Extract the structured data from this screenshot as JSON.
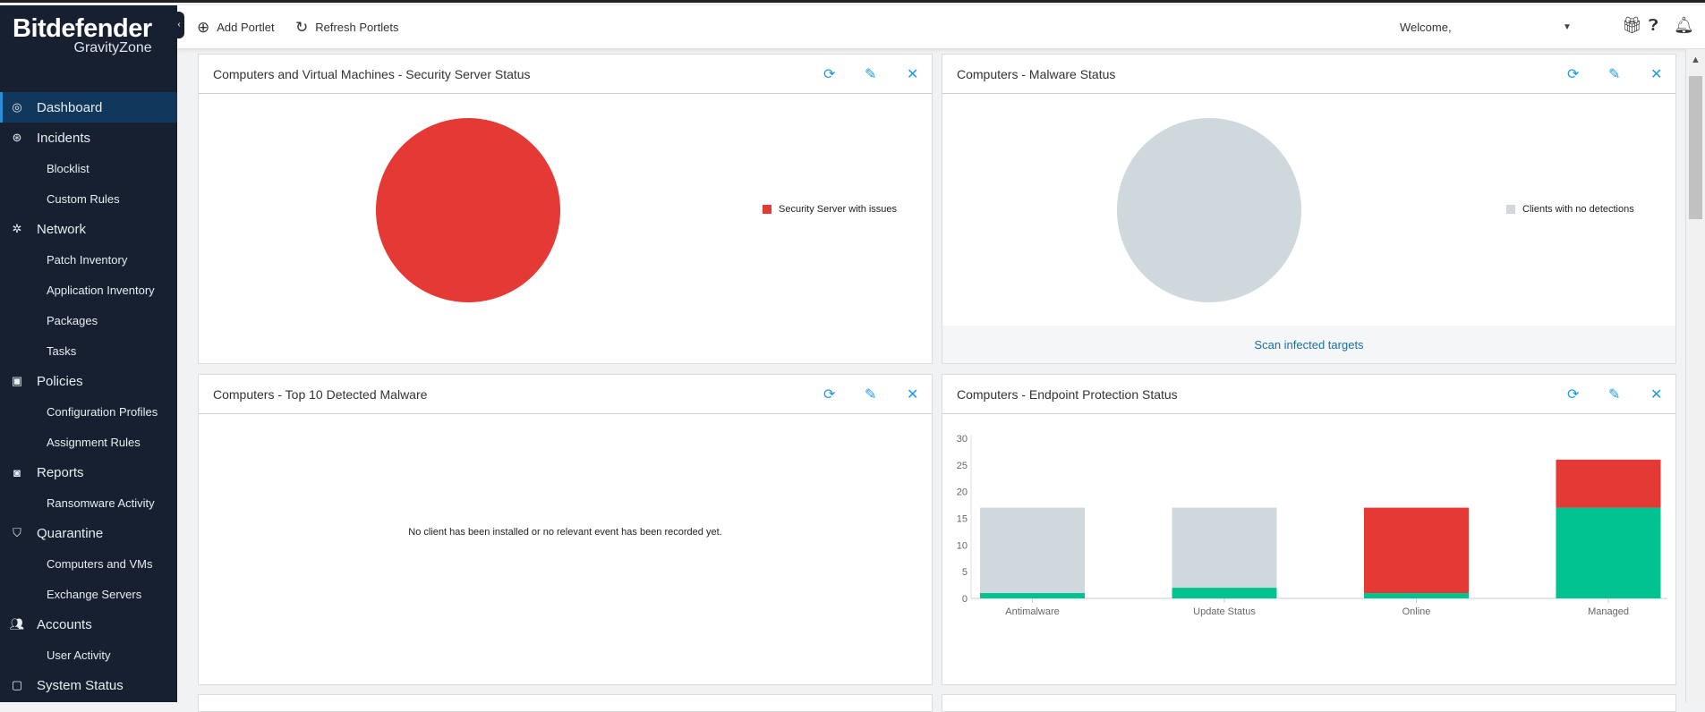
{
  "brand": {
    "name": "Bitdefender",
    "product": "GravityZone"
  },
  "sidebar": {
    "items": [
      {
        "label": "Dashboard",
        "icon": "dashboard-icon",
        "level": "top",
        "active": true
      },
      {
        "label": "Incidents",
        "icon": "incidents-icon",
        "level": "top"
      },
      {
        "label": "Blocklist",
        "level": "sub"
      },
      {
        "label": "Custom Rules",
        "level": "sub"
      },
      {
        "label": "Network",
        "icon": "network-icon",
        "level": "top"
      },
      {
        "label": "Patch Inventory",
        "level": "sub"
      },
      {
        "label": "Application Inventory",
        "level": "sub"
      },
      {
        "label": "Packages",
        "level": "sub"
      },
      {
        "label": "Tasks",
        "level": "sub"
      },
      {
        "label": "Policies",
        "icon": "policies-icon",
        "level": "top"
      },
      {
        "label": "Configuration Profiles",
        "level": "sub"
      },
      {
        "label": "Assignment Rules",
        "level": "sub"
      },
      {
        "label": "Reports",
        "icon": "reports-icon",
        "level": "top"
      },
      {
        "label": "Ransomware Activity",
        "level": "sub"
      },
      {
        "label": "Quarantine",
        "icon": "quarantine-icon",
        "level": "top"
      },
      {
        "label": "Computers and VMs",
        "level": "sub"
      },
      {
        "label": "Exchange Servers",
        "level": "sub"
      },
      {
        "label": "Accounts",
        "icon": "accounts-icon",
        "level": "top"
      },
      {
        "label": "User Activity",
        "level": "sub"
      },
      {
        "label": "System Status",
        "icon": "system-status-icon",
        "level": "top"
      }
    ]
  },
  "toolbar": {
    "add_portlet": "Add Portlet",
    "refresh_portlets": "Refresh Portlets",
    "welcome": "Welcome,"
  },
  "colors": {
    "red": "#e53935",
    "gray": "#cfd8dc",
    "green": "#00c48f",
    "accent": "#1e9be0"
  },
  "portlets": {
    "p1": {
      "title": "Computers and Virtual Machines - Security Server Status",
      "legend": "Security Server with issues"
    },
    "p2": {
      "title": "Computers - Malware Status",
      "legend": "Clients with no detections",
      "footer": "Scan infected targets"
    },
    "p3": {
      "title": "Computers - Top 10 Detected Malware",
      "empty": "No client has been installed or no relevant event has been recorded yet."
    },
    "p4": {
      "title": "Computers - Endpoint Protection Status"
    }
  },
  "chart_data": [
    {
      "type": "pie",
      "slices": [
        {
          "label": "Security Server with issues",
          "value": 100,
          "color": "#e53935"
        }
      ],
      "legend": "right"
    },
    {
      "type": "pie",
      "slices": [
        {
          "label": "Clients with no detections",
          "value": 100,
          "color": "#cfd8dc"
        }
      ],
      "legend": "right"
    },
    {
      "type": "bar",
      "stacked": true,
      "categories": [
        "Antimalware",
        "Update Status",
        "Online",
        "Managed"
      ],
      "ylim": [
        0,
        30
      ],
      "yticks": [
        "0",
        "5",
        "10",
        "15",
        "20",
        "25",
        "30"
      ],
      "series": [
        {
          "color": "#00c48f",
          "values": [
            1,
            2,
            1,
            17
          ]
        },
        {
          "color": "#cfd8dc",
          "values": [
            16,
            15,
            0,
            0
          ]
        },
        {
          "color": "#e53935",
          "values": [
            0,
            0,
            16,
            9
          ]
        }
      ]
    }
  ]
}
